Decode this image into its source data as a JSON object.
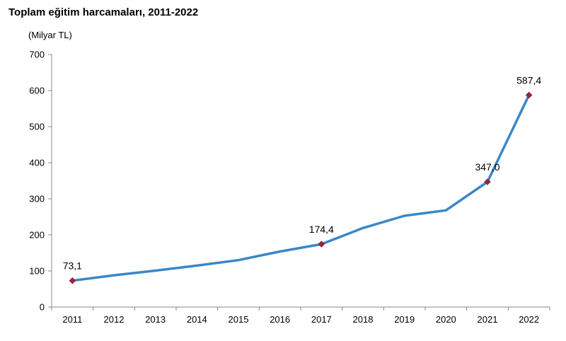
{
  "chart_data": {
    "type": "line",
    "title": "Toplam eğitim harcamaları, 2011-2022",
    "unit_label": "(Milyar TL)",
    "xlabel": "",
    "ylabel": "",
    "categories": [
      "2011",
      "2012",
      "2013",
      "2014",
      "2015",
      "2016",
      "2017",
      "2018",
      "2019",
      "2020",
      "2021",
      "2022"
    ],
    "series": [
      {
        "values": [
          73.1,
          88,
          101,
          115,
          130,
          154,
          174.4,
          219,
          253,
          268,
          347.0,
          587.4
        ]
      }
    ],
    "marked_points": [
      {
        "x": "2011",
        "label": "73,1"
      },
      {
        "x": "2017",
        "label": "174,4"
      },
      {
        "x": "2021",
        "label": "347,0"
      },
      {
        "x": "2022",
        "label": "587,4"
      }
    ],
    "ylim": [
      0,
      700
    ],
    "yticks": [
      0,
      100,
      200,
      300,
      400,
      500,
      600,
      700
    ],
    "grid": false,
    "legend": "none",
    "colors": {
      "line": "#3a87c8",
      "marker": "#9b2242",
      "axis": "#888888"
    }
  }
}
